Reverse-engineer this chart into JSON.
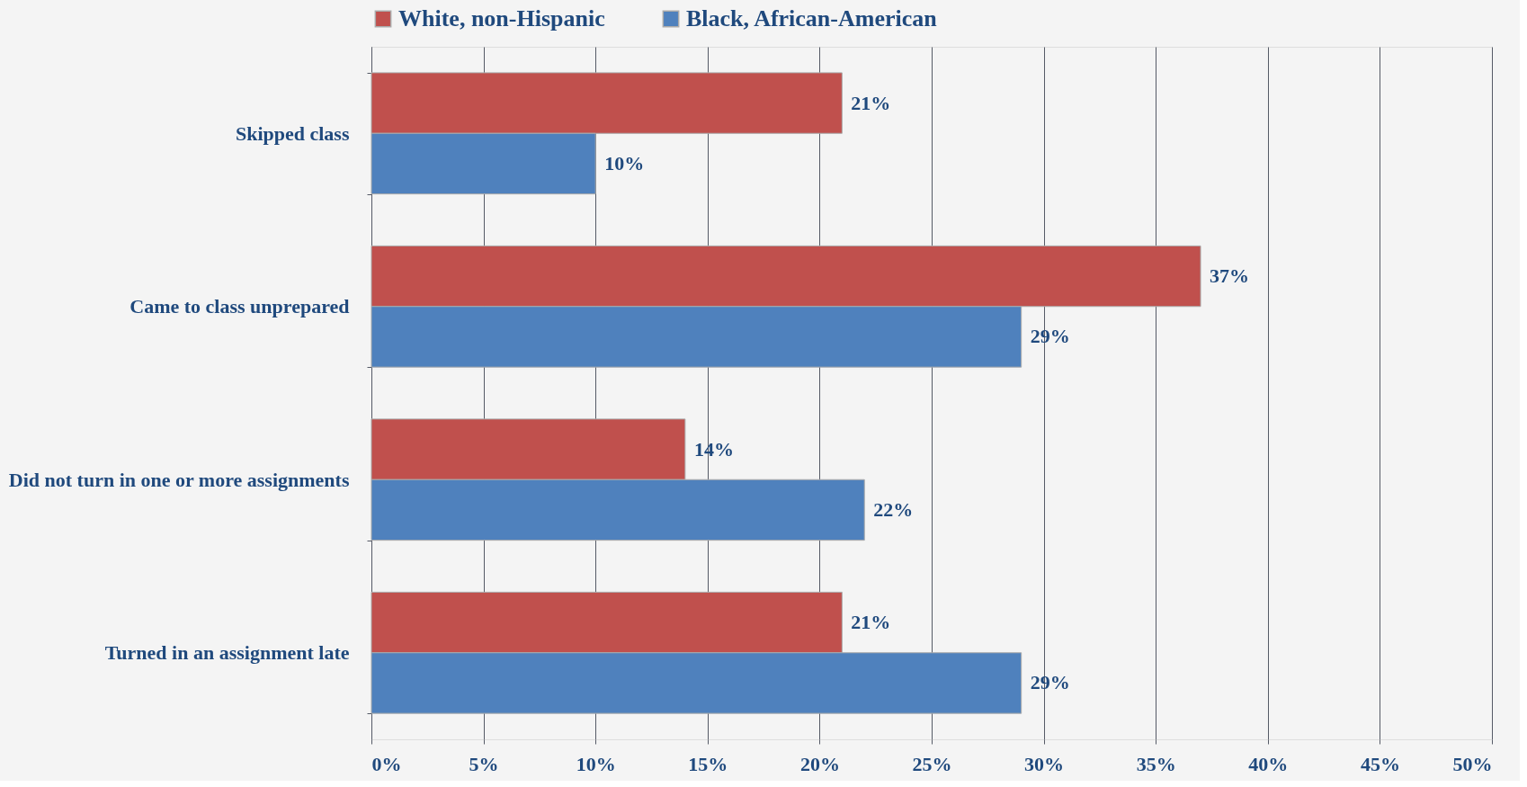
{
  "chart_data": {
    "type": "bar",
    "orientation": "horizontal",
    "categories": [
      "Skipped class",
      "Came to class unprepared",
      "Did not turn in one or more assignments",
      "Turned in an assignment late"
    ],
    "series": [
      {
        "name": "White, non-Hispanic",
        "color": "#c0504d",
        "values": [
          21,
          37,
          14,
          21
        ],
        "value_labels": [
          "21%",
          "37%",
          "14%",
          "21%"
        ]
      },
      {
        "name": "Black, African-American",
        "color": "#4f81bd",
        "values": [
          10,
          29,
          22,
          29
        ],
        "value_labels": [
          "10%",
          "29%",
          "22%",
          "29%"
        ]
      }
    ],
    "xlim": [
      0,
      50
    ],
    "xticks": [
      {
        "value": 0,
        "label": "0%"
      },
      {
        "value": 5,
        "label": "5%"
      },
      {
        "value": 10,
        "label": "10%"
      },
      {
        "value": 15,
        "label": "15%"
      },
      {
        "value": 20,
        "label": "20%"
      },
      {
        "value": 25,
        "label": "25%"
      },
      {
        "value": 30,
        "label": "30%"
      },
      {
        "value": 35,
        "label": "35%"
      },
      {
        "value": 40,
        "label": "40%"
      },
      {
        "value": 45,
        "label": "45%"
      },
      {
        "value": 50,
        "label": "50%"
      }
    ],
    "grid": "x",
    "legend": "top"
  }
}
